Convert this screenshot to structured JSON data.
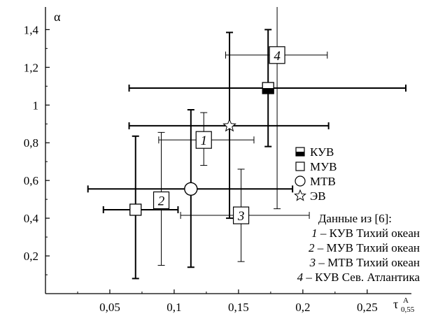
{
  "chart_data": {
    "type": "scatter",
    "xlim": [
      0,
      0.28
    ],
    "ylim": [
      0,
      1.52
    ],
    "xlabel": "τ",
    "xlabel_sup": "A",
    "xlabel_sub": "0,55",
    "ylabel": "α",
    "x_ticks": [
      {
        "value": 0.05,
        "label": "0,05"
      },
      {
        "value": 0.1,
        "label": "0,1"
      },
      {
        "value": 0.15,
        "label": "0,15"
      },
      {
        "value": 0.2,
        "label": "0,2"
      },
      {
        "value": 0.25,
        "label": "0,25"
      }
    ],
    "y_ticks": [
      {
        "value": 0.2,
        "label": "0,2"
      },
      {
        "value": 0.4,
        "label": "0,4"
      },
      {
        "value": 0.6,
        "label": "0,6"
      },
      {
        "value": 0.8,
        "label": "0,8"
      },
      {
        "value": 1.0,
        "label": "1"
      },
      {
        "value": 1.2,
        "label": "1,2"
      },
      {
        "value": 1.4,
        "label": "1,4"
      }
    ],
    "series": [
      {
        "name": "КУВ",
        "marker": "half-filled-square",
        "points": [
          {
            "x": 0.173,
            "y": 1.09,
            "xerr": [
              0.065,
              0.28
            ],
            "yerr": [
              0.78,
              1.4
            ],
            "bold": true
          }
        ]
      },
      {
        "name": "МУВ",
        "marker": "open-square",
        "points": [
          {
            "x": 0.07,
            "y": 0.445,
            "xerr": [
              0.045,
              0.103
            ],
            "yerr": [
              0.08,
              0.835
            ],
            "bold": true
          }
        ]
      },
      {
        "name": "МТВ",
        "marker": "open-circle",
        "points": [
          {
            "x": 0.113,
            "y": 0.555,
            "xerr": [
              0.033,
              0.192
            ],
            "yerr": [
              0.14,
              0.975
            ],
            "bold": true
          }
        ]
      },
      {
        "name": "ЭВ",
        "marker": "open-star",
        "points": [
          {
            "x": 0.143,
            "y": 0.89,
            "xerr": [
              0.065,
              0.22
            ],
            "yerr": [
              0.4,
              1.385
            ],
            "bold": true
          }
        ]
      },
      {
        "name": "1",
        "marker": "numbered-square",
        "label": "1",
        "points": [
          {
            "x": 0.123,
            "y": 0.815,
            "xerr": [
              0.088,
              0.162
            ],
            "yerr": [
              0.68,
              0.96
            ],
            "bold": false
          }
        ]
      },
      {
        "name": "2",
        "marker": "numbered-square",
        "label": "2",
        "points": [
          {
            "x": 0.09,
            "y": 0.495,
            "xerr": [
              0.09,
              0.09
            ],
            "yerr": [
              0.15,
              0.855
            ],
            "bold": false
          }
        ]
      },
      {
        "name": "3",
        "marker": "numbered-square",
        "label": "3",
        "points": [
          {
            "x": 0.152,
            "y": 0.415,
            "xerr": [
              0.105,
              0.205
            ],
            "yerr": [
              0.17,
              0.66
            ],
            "bold": false
          }
        ]
      },
      {
        "name": "4",
        "marker": "numbered-square",
        "label": "4",
        "points": [
          {
            "x": 0.18,
            "y": 1.265,
            "xerr": [
              0.14,
              0.219
            ],
            "yerr": [
              0.45,
              1.52
            ],
            "bold": false
          }
        ]
      }
    ],
    "legend": {
      "placement": "right",
      "items": [
        {
          "marker": "half-filled-square",
          "text": "КУВ"
        },
        {
          "marker": "open-square",
          "text": "МУВ"
        },
        {
          "marker": "open-circle",
          "text": "МТВ"
        },
        {
          "marker": "open-star",
          "text": "ЭВ"
        }
      ],
      "source_title": "Данные из [6]:",
      "source_items": [
        {
          "num": "1",
          "text": " – КУВ Тихий океан"
        },
        {
          "num": "2",
          "text": " – МУВ Тихий океан"
        },
        {
          "num": "3",
          "text": " – МТВ Тихий океан"
        },
        {
          "num": "4",
          "text": " – КУВ Сев. Атлантика"
        }
      ]
    }
  }
}
